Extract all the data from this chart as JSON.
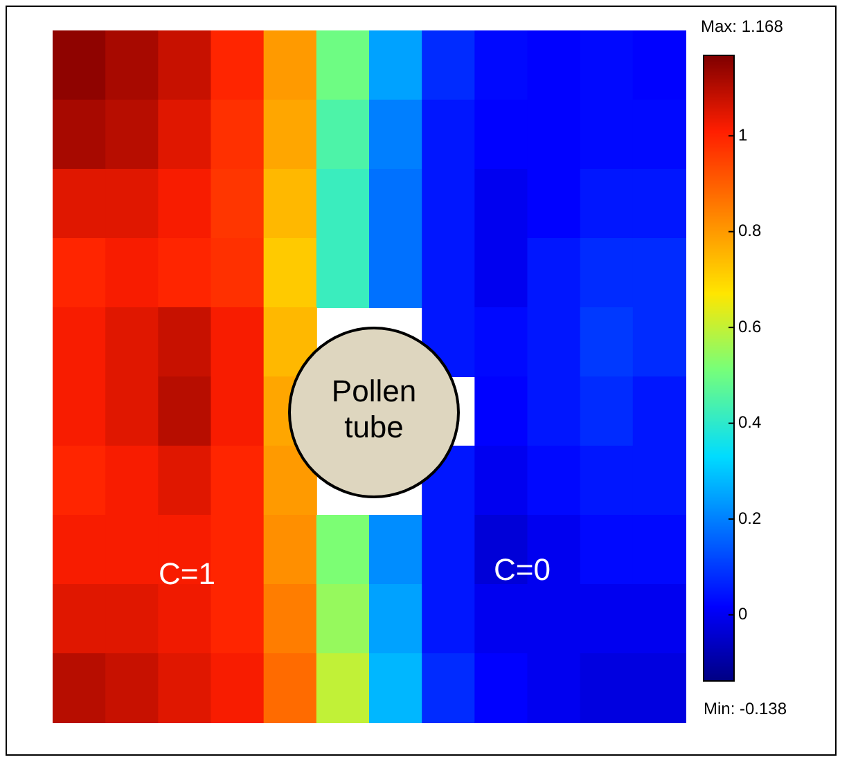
{
  "chart_data": {
    "type": "heatmap",
    "categories": [
      null,
      null,
      null,
      null,
      null,
      null,
      null,
      null,
      null,
      null,
      null,
      null
    ],
    "y_categories": [
      null,
      null,
      null,
      null,
      null,
      null,
      null,
      null,
      null,
      null
    ],
    "cells": [
      [
        1.15,
        1.12,
        1.08,
        1.0,
        0.8,
        0.5,
        0.25,
        0.08,
        0.03,
        0.02,
        0.03,
        0.02
      ],
      [
        1.12,
        1.1,
        1.05,
        0.98,
        0.78,
        0.45,
        0.2,
        0.05,
        0.02,
        0.02,
        0.03,
        0.03
      ],
      [
        1.05,
        1.05,
        1.02,
        0.97,
        0.75,
        0.42,
        0.18,
        0.05,
        0.0,
        0.02,
        0.05,
        0.05
      ],
      [
        1.0,
        1.02,
        1.0,
        0.98,
        0.72,
        0.42,
        0.18,
        0.05,
        0.0,
        0.05,
        0.08,
        0.08
      ],
      [
        1.02,
        1.05,
        1.08,
        1.02,
        0.75,
        null,
        null,
        0.05,
        0.03,
        0.05,
        0.1,
        0.08
      ],
      [
        1.02,
        1.05,
        1.1,
        1.02,
        0.78,
        null,
        null,
        null,
        0.02,
        0.05,
        0.08,
        0.05
      ],
      [
        1.0,
        1.02,
        1.05,
        1.0,
        0.8,
        null,
        null,
        0.05,
        0.0,
        0.03,
        0.05,
        0.05
      ],
      [
        1.02,
        1.02,
        1.02,
        1.0,
        0.82,
        0.52,
        0.22,
        0.05,
        -0.03,
        0.0,
        0.03,
        0.03
      ],
      [
        1.05,
        1.05,
        1.03,
        1.0,
        0.85,
        0.55,
        0.25,
        0.05,
        0.0,
        0.0,
        0.0,
        0.0
      ],
      [
        1.1,
        1.08,
        1.05,
        1.02,
        0.88,
        0.6,
        0.28,
        0.08,
        0.02,
        0.0,
        -0.02,
        -0.02
      ]
    ],
    "clim": [
      -0.138,
      1.168
    ],
    "cticks": [
      0,
      0.2,
      0.4,
      0.6,
      0.8,
      1
    ],
    "annotations": [
      "Max: 1.168",
      "Min: -0.138",
      "Pollen tube",
      "C=1",
      "C=0"
    ]
  }
}
